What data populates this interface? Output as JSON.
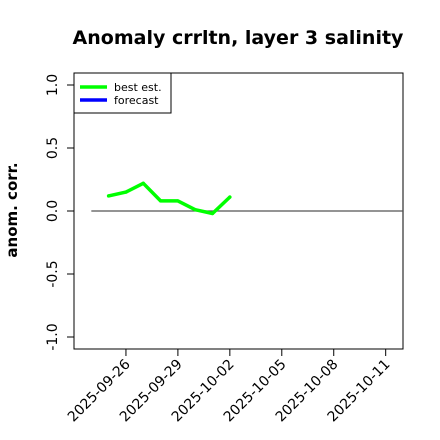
{
  "chart_data": {
    "type": "line",
    "title": "Anomaly crrltn, layer 3 salinity",
    "xlabel": "",
    "ylabel": "anom. corr.",
    "ylim": [
      -1.0,
      1.0
    ],
    "yticks": [
      -1.0,
      -0.5,
      0.0,
      0.5,
      1.0
    ],
    "ytick_labels": [
      "-1.0",
      "-0.5",
      "0.0",
      "0.5",
      "1.0"
    ],
    "xlim": [
      "2025-09-23",
      "2025-10-12"
    ],
    "xtick_labels": [
      "2025-09-26",
      "2025-09-29",
      "2025-10-02",
      "2025-10-05",
      "2025-10-08",
      "2025-10-11"
    ],
    "highlighted_xtick": "2025-10-02",
    "highlight_color": "#228B22",
    "reference_line": {
      "y": 0.0,
      "from": "2025-09-24",
      "to": "2025-10-12",
      "color": "#555555"
    },
    "legend": {
      "position": "top-left",
      "boxed": true
    },
    "series": [
      {
        "name": "best est.",
        "color": "#00ff00",
        "x": [
          "2025-09-25",
          "2025-09-26",
          "2025-09-27",
          "2025-09-28",
          "2025-09-29",
          "2025-09-30",
          "2025-10-01",
          "2025-10-02"
        ],
        "values": [
          0.12,
          0.15,
          0.22,
          0.08,
          0.08,
          0.01,
          -0.02,
          0.11
        ]
      },
      {
        "name": "forecast",
        "color": "#0000ff",
        "x": [],
        "values": []
      }
    ]
  }
}
